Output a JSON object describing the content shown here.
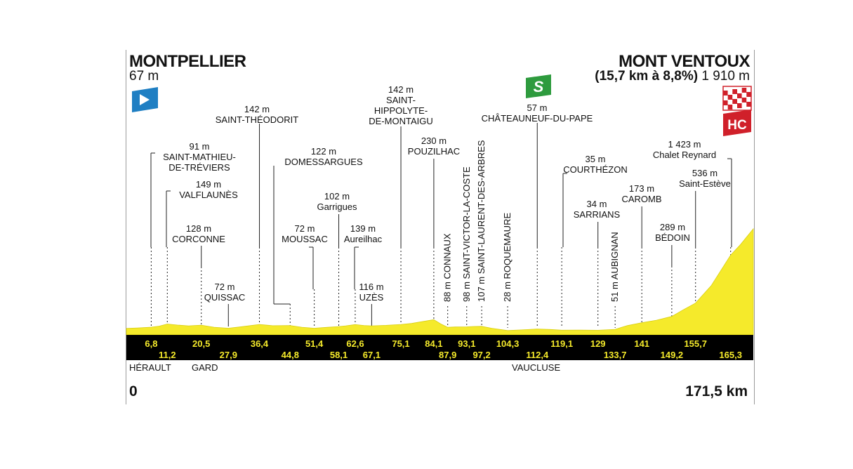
{
  "start": {
    "name": "MONTPELLIER",
    "altitude": "67 m",
    "km": "0"
  },
  "finish": {
    "name": "MONT VENTOUX",
    "climb": "(15,7 km à 8,8%)",
    "altitude": "1 910 m",
    "km": "171,5 km"
  },
  "regions": [
    "HÉRAULT",
    "GARD",
    "VAUCLUSE"
  ],
  "icons": {
    "start": "start-flag-icon",
    "sprint": "sprint-s-icon",
    "finish": "checkered-finish-icon",
    "category": "HC"
  },
  "colors": {
    "profile": "#f5ea2b",
    "band": "#000000",
    "km_text": "#f5ea2b",
    "sprint": "#2e9b3e",
    "start": "#1f7fc3",
    "finish": "#d0202a"
  },
  "chart_data": {
    "type": "area",
    "x_unit": "km",
    "xlim": [
      0,
      171.5
    ],
    "profile": [
      [
        0,
        67
      ],
      [
        3,
        75
      ],
      [
        6.8,
        91
      ],
      [
        9,
        110
      ],
      [
        11.2,
        149
      ],
      [
        14,
        130
      ],
      [
        17,
        115
      ],
      [
        20.5,
        128
      ],
      [
        24,
        90
      ],
      [
        27.9,
        72
      ],
      [
        31,
        95
      ],
      [
        36.4,
        142
      ],
      [
        40,
        118
      ],
      [
        44.8,
        122
      ],
      [
        48,
        90
      ],
      [
        51.4,
        72
      ],
      [
        55,
        88
      ],
      [
        58.1,
        102
      ],
      [
        60,
        115
      ],
      [
        62.6,
        139
      ],
      [
        65,
        122
      ],
      [
        67.1,
        116
      ],
      [
        71,
        125
      ],
      [
        75.1,
        142
      ],
      [
        78,
        160
      ],
      [
        84.1,
        230
      ],
      [
        86,
        150
      ],
      [
        87.9,
        88
      ],
      [
        90,
        95
      ],
      [
        93.1,
        98
      ],
      [
        95,
        104
      ],
      [
        97.2,
        107
      ],
      [
        100,
        70
      ],
      [
        104.3,
        28
      ],
      [
        108,
        40
      ],
      [
        112.4,
        57
      ],
      [
        116,
        48
      ],
      [
        119.1,
        35
      ],
      [
        124,
        36
      ],
      [
        129,
        34
      ],
      [
        131,
        40
      ],
      [
        133.7,
        51
      ],
      [
        137,
        120
      ],
      [
        141,
        173
      ],
      [
        145,
        220
      ],
      [
        149.2,
        289
      ],
      [
        152,
        400
      ],
      [
        155.7,
        536
      ],
      [
        160,
        860
      ],
      [
        165.3,
        1423
      ],
      [
        168,
        1620
      ],
      [
        171.5,
        1910
      ]
    ],
    "km_row_top": [
      "6,8",
      "20,5",
      "36,4",
      "51,4",
      "62,6",
      "75,1",
      "84,1",
      "93,1",
      "104,3",
      "119,1",
      "129",
      "141",
      "155,7"
    ],
    "km_row_bottom": [
      "11,2",
      "27,9",
      "44,8",
      "58,1",
      "67,1",
      "87,9",
      "97,2",
      "112,4",
      "133,7",
      "149,2",
      "165,3"
    ],
    "waypoints": [
      {
        "km": 6.8,
        "alt": "91 m",
        "label": [
          "SAINT-MATHIEU-",
          "DE-TRÉVIERS"
        ]
      },
      {
        "km": 11.2,
        "alt": "149 m",
        "label": [
          "VALFLAUNÈS"
        ]
      },
      {
        "km": 20.5,
        "alt": "128 m",
        "label": [
          "CORCONNE"
        ]
      },
      {
        "km": 27.9,
        "alt": "72 m",
        "label": [
          "QUISSAC"
        ]
      },
      {
        "km": 36.4,
        "alt": "142 m",
        "label": [
          "SAINT-THÉODORIT"
        ]
      },
      {
        "km": 44.8,
        "alt": "122 m",
        "label": [
          "DOMESSARGUES"
        ]
      },
      {
        "km": 51.4,
        "alt": "72 m",
        "label": [
          "MOUSSAC"
        ]
      },
      {
        "km": 58.1,
        "alt": "102 m",
        "label": [
          "Garrigues"
        ]
      },
      {
        "km": 62.6,
        "alt": "139 m",
        "label": [
          "Aureilhac"
        ]
      },
      {
        "km": 67.1,
        "alt": "116 m",
        "label": [
          "UZÈS"
        ]
      },
      {
        "km": 75.1,
        "alt": "142 m",
        "label": [
          "SAINT-",
          "HIPPOLYTE-",
          "DE-MONTAIGU"
        ]
      },
      {
        "km": 84.1,
        "alt": "230 m",
        "label": [
          "POUZILHAC"
        ]
      },
      {
        "km": 112.4,
        "alt": "57 m",
        "label": [
          "CHÂTEAUNEUF-DU-PAPE"
        ]
      },
      {
        "km": 119.1,
        "alt": "35 m",
        "label": [
          "COURTHÉZON"
        ]
      },
      {
        "km": 129,
        "alt": "34 m",
        "label": [
          "SARRIANS"
        ]
      },
      {
        "km": 141,
        "alt": "173 m",
        "label": [
          "CAROMB"
        ]
      },
      {
        "km": 149.2,
        "alt": "289 m",
        "label": [
          "BÉDOIN"
        ]
      },
      {
        "km": 155.7,
        "alt": "536 m",
        "label": [
          "Saint-Estève"
        ]
      },
      {
        "km": 165.3,
        "alt": "1 423 m",
        "label": [
          "Chalet Reynard"
        ]
      }
    ],
    "vertical_waypoints": [
      {
        "km": 87.9,
        "text": "88 m CONNAUX"
      },
      {
        "km": 93.1,
        "text": "98 m SAINT-VICTOR-LA-COSTE"
      },
      {
        "km": 97.2,
        "text": "107 m SAINT-LAURENT-DES-ARBRES"
      },
      {
        "km": 104.3,
        "text": "28 m ROQUEMAURE"
      },
      {
        "km": 133.7,
        "text": "51 m AUBIGNAN"
      }
    ]
  }
}
